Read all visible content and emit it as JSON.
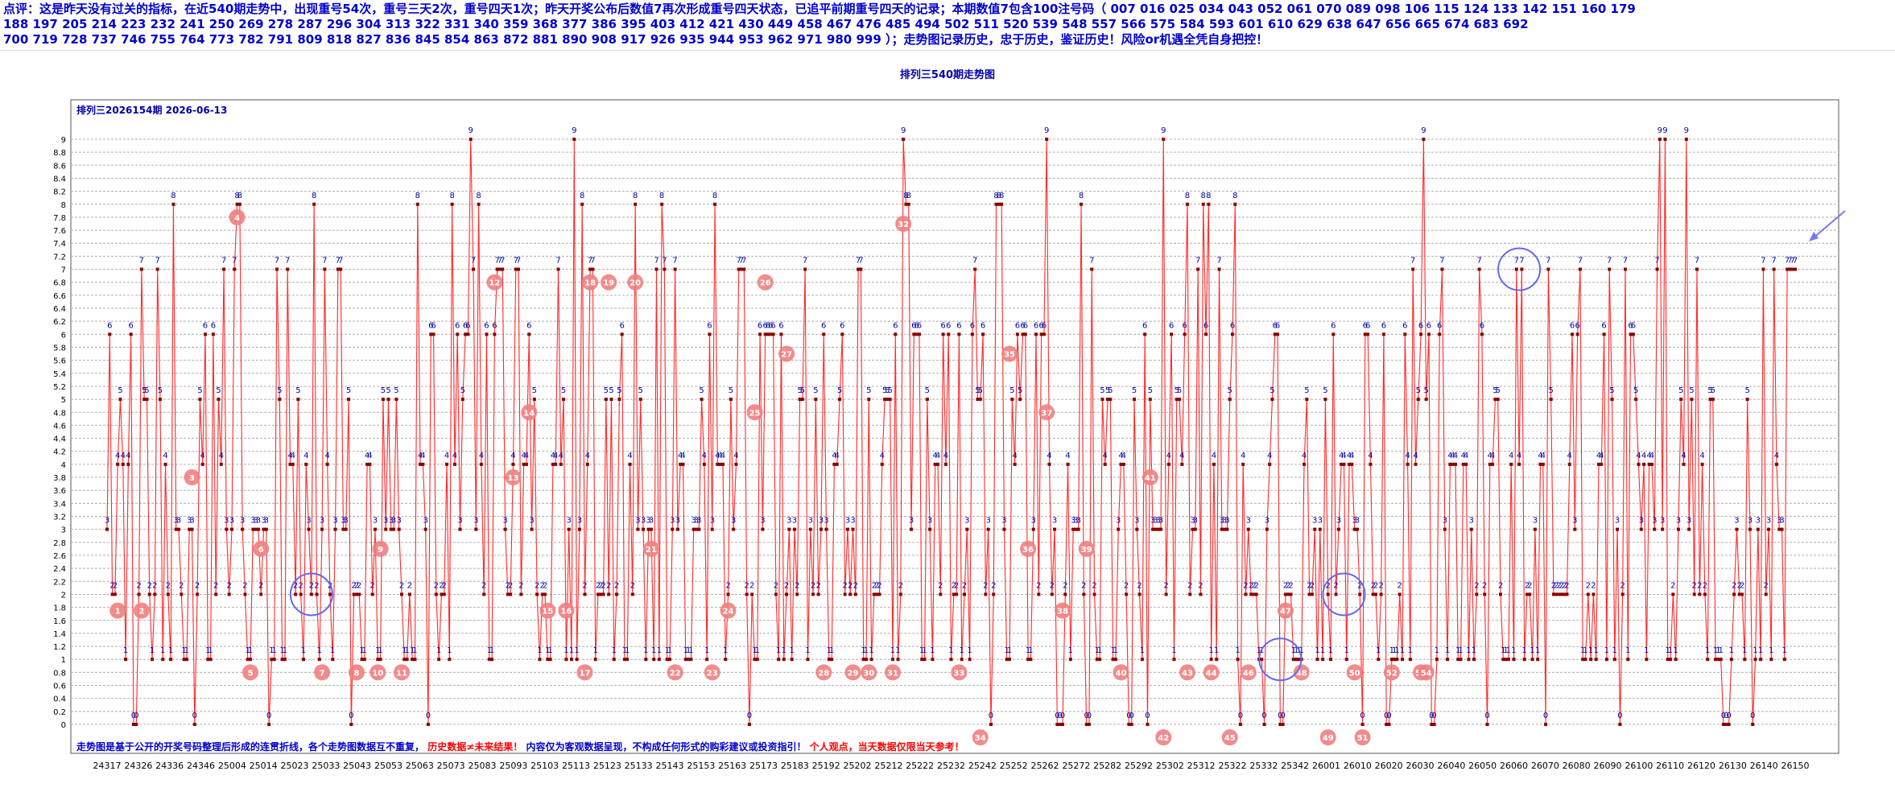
{
  "header": {
    "line1": "点评：这是昨天没有过关的指标，在近540期走势中，出现重号54次，重号三天2次，重号四天1次；昨天开奖公布后数值7再次形成重号四天状态，已追平前期重号四天的记录；本期数值7包含100注号码（ 007  016  025  034  043  052  061  070  089  098  106  115  124  133  142  151  160  179",
    "line2": "188  197  205  214  223  232  241  250  269  278  287  296  304  313  322  331  340  359  368  377  386  395  403  412  421  430  449  458  467  476  485  494  502  511  520  539  548  557  566  575  584  593  601  610  629  638  647  656  665  674  683  692",
    "line3": "700  719  728  737  746  755  764  773  782  791  809  818  827  836  845  854  863  872  881  890  908  917  926  935  944  953  962  971  980  999 ）；走势图记录历史，忠于历史，鉴证历史！风险or机遇全凭自身把控！"
  },
  "colors": {
    "header_text": "#0000cc",
    "line": "#ff2a2a",
    "point": "#8b0000",
    "value_label": "#0000aa",
    "repeat_marker": "#f08080",
    "highlight_circle": "#6666ee",
    "grid": "#b0b0b0",
    "footer_red": "#ff0000",
    "footer_blue": "#0000cc"
  },
  "chart_data": {
    "type": "line",
    "title": "排列三540期走势图",
    "subtitle": "排列三2026154期 2026-06-13",
    "ylim": [
      0,
      9.2
    ],
    "y_ticks": [
      "0",
      "0.2",
      "0.4",
      "0.6",
      "0.8",
      "1",
      "1.2",
      "1.4",
      "1.6",
      "1.8",
      "2",
      "2.2",
      "2.4",
      "2.6",
      "2.8",
      "3",
      "3.2",
      "3.4",
      "3.6",
      "3.8",
      "4",
      "4.2",
      "4.4",
      "4.6",
      "4.8",
      "5",
      "5.2",
      "5.4",
      "5.6",
      "5.8",
      "6",
      "6.2",
      "6.4",
      "6.6",
      "6.8",
      "7",
      "7.2",
      "7.4",
      "7.6",
      "7.8",
      "8",
      "8.2",
      "8.4",
      "8.6",
      "8.8",
      "9"
    ],
    "x_tick_labels": [
      "24317",
      "24326",
      "24336",
      "24346",
      "25004",
      "25014",
      "25023",
      "25033",
      "25043",
      "25053",
      "25063",
      "25073",
      "25083",
      "25093",
      "25103",
      "25113",
      "25123",
      "25133",
      "25143",
      "25153",
      "25163",
      "25173",
      "25183",
      "25192",
      "25202",
      "25212",
      "25222",
      "25232",
      "25242",
      "25252",
      "25262",
      "25272",
      "25282",
      "25292",
      "25302",
      "25312",
      "25322",
      "25332",
      "25342",
      "26001",
      "26010",
      "26020",
      "26030",
      "26040",
      "26050",
      "26060",
      "26070",
      "26080",
      "26090",
      "26100",
      "26110",
      "26120",
      "26130",
      "26140",
      "26150"
    ],
    "grid": true,
    "values": [
      3,
      6,
      2,
      2,
      4,
      5,
      4,
      1,
      4,
      6,
      0,
      0,
      2,
      7,
      5,
      5,
      2,
      1,
      2,
      7,
      5,
      1,
      4,
      2,
      1,
      8,
      3,
      3,
      2,
      1,
      1,
      3,
      3,
      0,
      2,
      5,
      4,
      6,
      1,
      1,
      6,
      2,
      5,
      4,
      7,
      3,
      2,
      3,
      7,
      8,
      8,
      3,
      2,
      1,
      1,
      3,
      3,
      3,
      2,
      3,
      3,
      0,
      1,
      1,
      7,
      5,
      1,
      1,
      7,
      4,
      4,
      2,
      5,
      2,
      1,
      4,
      3,
      2,
      8,
      2,
      1,
      3,
      7,
      4,
      2,
      1,
      3,
      7,
      7,
      3,
      3,
      5,
      0,
      2,
      2,
      2,
      1,
      1,
      4,
      4,
      2,
      3,
      1,
      1,
      5,
      3,
      5,
      3,
      3,
      5,
      3,
      2,
      1,
      1,
      2,
      1,
      1,
      8,
      4,
      4,
      3,
      0,
      6,
      6,
      2,
      1,
      2,
      2,
      4,
      1,
      8,
      4,
      6,
      3,
      5,
      6,
      6,
      9,
      7,
      3,
      8,
      4,
      2,
      6,
      1,
      1,
      6,
      7,
      7,
      7,
      3,
      2,
      2,
      4,
      7,
      7,
      2,
      4,
      4,
      6,
      3,
      5,
      2,
      1,
      2,
      2,
      1,
      1,
      4,
      4,
      7,
      4,
      5,
      1,
      3,
      1,
      9,
      1,
      3,
      8,
      2,
      4,
      7,
      7,
      1,
      2,
      2,
      2,
      5,
      2,
      5,
      1,
      2,
      5,
      6,
      1,
      1,
      4,
      2,
      8,
      3,
      5,
      3,
      1,
      3,
      3,
      1,
      7,
      1,
      8,
      7,
      1,
      1,
      3,
      7,
      3,
      4,
      4,
      1,
      1,
      1,
      3,
      3,
      3,
      5,
      4,
      1,
      6,
      3,
      8,
      4,
      4,
      4,
      1,
      2,
      5,
      3,
      4,
      7,
      7,
      7,
      2,
      0,
      2,
      1,
      1,
      6,
      3,
      6,
      6,
      6,
      6,
      2,
      1,
      6,
      1,
      2,
      3,
      1,
      3,
      2,
      5,
      5,
      7,
      1,
      3,
      2,
      5,
      2,
      3,
      6,
      3,
      1,
      1,
      4,
      4,
      5,
      6,
      2,
      3,
      2,
      3,
      2,
      7,
      7,
      1,
      1,
      5,
      1,
      2,
      2,
      2,
      4,
      5,
      5,
      5,
      1,
      6,
      1,
      2,
      9,
      8,
      8,
      3,
      6,
      6,
      6,
      1,
      1,
      5,
      3,
      1,
      4,
      4,
      2,
      6,
      4,
      6,
      1,
      2,
      2,
      6,
      1,
      2,
      3,
      1,
      6,
      7,
      5,
      5,
      6,
      2,
      3,
      0,
      2,
      8,
      8,
      8,
      3,
      1,
      1,
      5,
      4,
      6,
      5,
      6,
      6,
      1,
      1,
      3,
      6,
      2,
      6,
      6,
      9,
      4,
      2,
      3,
      0,
      0,
      0,
      2,
      4,
      1,
      3,
      3,
      3,
      8,
      2,
      0,
      0,
      7,
      2,
      1,
      1,
      5,
      4,
      5,
      5,
      1,
      1,
      3,
      4,
      4,
      2,
      0,
      0,
      5,
      3,
      2,
      1,
      6,
      0,
      5,
      3,
      3,
      3,
      3,
      9,
      2,
      4,
      6,
      1,
      5,
      5,
      4,
      6,
      8,
      2,
      3,
      3,
      7,
      2,
      8,
      6,
      8,
      1,
      4,
      1,
      7,
      3,
      3,
      3,
      5,
      6,
      8,
      1,
      0,
      4,
      2,
      3,
      2,
      2,
      2,
      1,
      1,
      0,
      3,
      4,
      5,
      6,
      6,
      0,
      0,
      2,
      2,
      2,
      1,
      1,
      1,
      1,
      4,
      5,
      2,
      2,
      3,
      1,
      3,
      1,
      5,
      2,
      1,
      6,
      2,
      3,
      4,
      4,
      1,
      4,
      4,
      3,
      3,
      2,
      0,
      6,
      6,
      4,
      2,
      2,
      1,
      2,
      6,
      0,
      0,
      1,
      1,
      1,
      2,
      1,
      6,
      4,
      1,
      7,
      4,
      5,
      6,
      9,
      5,
      6,
      0,
      0,
      1,
      6,
      7,
      3,
      1,
      4,
      4,
      4,
      1,
      1,
      4,
      4,
      1,
      3,
      1,
      2,
      7,
      6,
      2,
      0,
      4,
      4,
      5,
      5,
      2,
      1,
      1,
      1,
      4,
      1,
      7,
      4,
      7,
      1,
      2,
      2,
      1,
      3,
      1,
      4,
      4,
      0,
      7,
      5,
      2,
      2,
      2,
      2,
      2,
      2,
      4,
      6,
      3,
      6,
      7,
      1,
      1,
      2,
      1,
      2,
      1,
      4,
      4,
      6,
      1,
      7,
      5,
      1,
      3,
      0,
      2,
      7,
      1,
      6,
      6,
      5,
      4,
      3,
      4,
      1,
      4,
      4,
      3,
      7,
      9,
      3,
      9,
      1,
      1,
      2,
      1,
      3,
      5,
      4,
      9,
      3,
      5,
      2,
      7,
      2,
      4,
      2,
      1,
      5,
      5,
      1,
      1,
      1,
      0,
      0,
      0,
      1,
      2,
      3,
      2,
      2,
      1,
      5,
      3,
      0,
      1,
      3,
      1,
      7,
      2,
      3,
      1,
      7,
      4,
      3,
      3,
      1,
      7,
      7,
      7,
      7
    ],
    "repeat_markers": [
      {
        "label": "1",
        "x": 4,
        "y": 1.75
      },
      {
        "label": "2",
        "x": 13,
        "y": 1.75
      },
      {
        "label": "3",
        "x": 32,
        "y": 3.8
      },
      {
        "label": "4",
        "x": 49,
        "y": 7.8
      },
      {
        "label": "5",
        "x": 54,
        "y": 0.8
      },
      {
        "label": "6",
        "x": 58,
        "y": 2.7
      },
      {
        "label": "7",
        "x": 81,
        "y": 0.8
      },
      {
        "label": "8",
        "x": 94,
        "y": 0.8
      },
      {
        "label": "9",
        "x": 103,
        "y": 2.7
      },
      {
        "label": "10",
        "x": 102,
        "y": 0.8
      },
      {
        "label": "11",
        "x": 111,
        "y": 0.8
      },
      {
        "label": "12",
        "x": 146,
        "y": 6.8
      },
      {
        "label": "13",
        "x": 153,
        "y": 3.8
      },
      {
        "label": "14",
        "x": 159,
        "y": 4.8
      },
      {
        "label": "15",
        "x": 166,
        "y": 1.75
      },
      {
        "label": "16",
        "x": 173,
        "y": 1.75
      },
      {
        "label": "17",
        "x": 180,
        "y": 0.8
      },
      {
        "label": "18",
        "x": 182,
        "y": 6.8
      },
      {
        "label": "19",
        "x": 189,
        "y": 6.8
      },
      {
        "label": "20",
        "x": 199,
        "y": 6.8
      },
      {
        "label": "21",
        "x": 205,
        "y": 2.7
      },
      {
        "label": "22",
        "x": 214,
        "y": 0.8
      },
      {
        "label": "23",
        "x": 228,
        "y": 0.8
      },
      {
        "label": "24",
        "x": 234,
        "y": 1.75
      },
      {
        "label": "25",
        "x": 244,
        "y": 4.8
      },
      {
        "label": "26",
        "x": 248,
        "y": 6.8
      },
      {
        "label": "27",
        "x": 256,
        "y": 5.7
      },
      {
        "label": "28",
        "x": 270,
        "y": 0.8
      },
      {
        "label": "29",
        "x": 281,
        "y": 0.8
      },
      {
        "label": "30",
        "x": 287,
        "y": 0.8
      },
      {
        "label": "31",
        "x": 296,
        "y": 0.8
      },
      {
        "label": "32",
        "x": 300,
        "y": 7.7
      },
      {
        "label": "33",
        "x": 321,
        "y": 0.8
      },
      {
        "label": "34",
        "x": 329,
        "y": -0.2
      },
      {
        "label": "35",
        "x": 340,
        "y": 5.7
      },
      {
        "label": "36",
        "x": 347,
        "y": 2.7
      },
      {
        "label": "37",
        "x": 354,
        "y": 4.8
      },
      {
        "label": "38",
        "x": 360,
        "y": 1.75
      },
      {
        "label": "39",
        "x": 369,
        "y": 2.7
      },
      {
        "label": "40",
        "x": 382,
        "y": 0.8
      },
      {
        "label": "41",
        "x": 393,
        "y": 3.8
      },
      {
        "label": "42",
        "x": 398,
        "y": -0.2
      },
      {
        "label": "43",
        "x": 407,
        "y": 0.8
      },
      {
        "label": "44",
        "x": 416,
        "y": 0.8
      },
      {
        "label": "45",
        "x": 423,
        "y": -0.2
      },
      {
        "label": "46",
        "x": 430,
        "y": 0.8
      },
      {
        "label": "47",
        "x": 444,
        "y": 1.75
      },
      {
        "label": "48",
        "x": 450,
        "y": 0.8
      },
      {
        "label": "49",
        "x": 460,
        "y": -0.2
      },
      {
        "label": "50",
        "x": 470,
        "y": 0.8
      },
      {
        "label": "51",
        "x": 473,
        "y": -0.2
      },
      {
        "label": "52",
        "x": 484,
        "y": 0.8
      },
      {
        "label": "53",
        "x": 495,
        "y": 0.8
      },
      {
        "label": "54",
        "x": 497,
        "y": 0.8
      }
    ],
    "highlight_circles": [
      {
        "x": 77,
        "y": 2
      },
      {
        "x": 442,
        "y": 1
      },
      {
        "x": 466,
        "y": 2
      },
      {
        "x": 532,
        "y": 7
      }
    ],
    "footer": {
      "part1": "走势图是基于公开的开奖号码整理后形成的连贯折线，各个走势图数据互不重复，",
      "part2": "历史数据≠未来结果！",
      "part3": "内容仅为客观数据呈现，不构成任何形式的购彩建议或投资指引！",
      "part4": "个人观点，当天数据仅限当天参考！"
    }
  }
}
